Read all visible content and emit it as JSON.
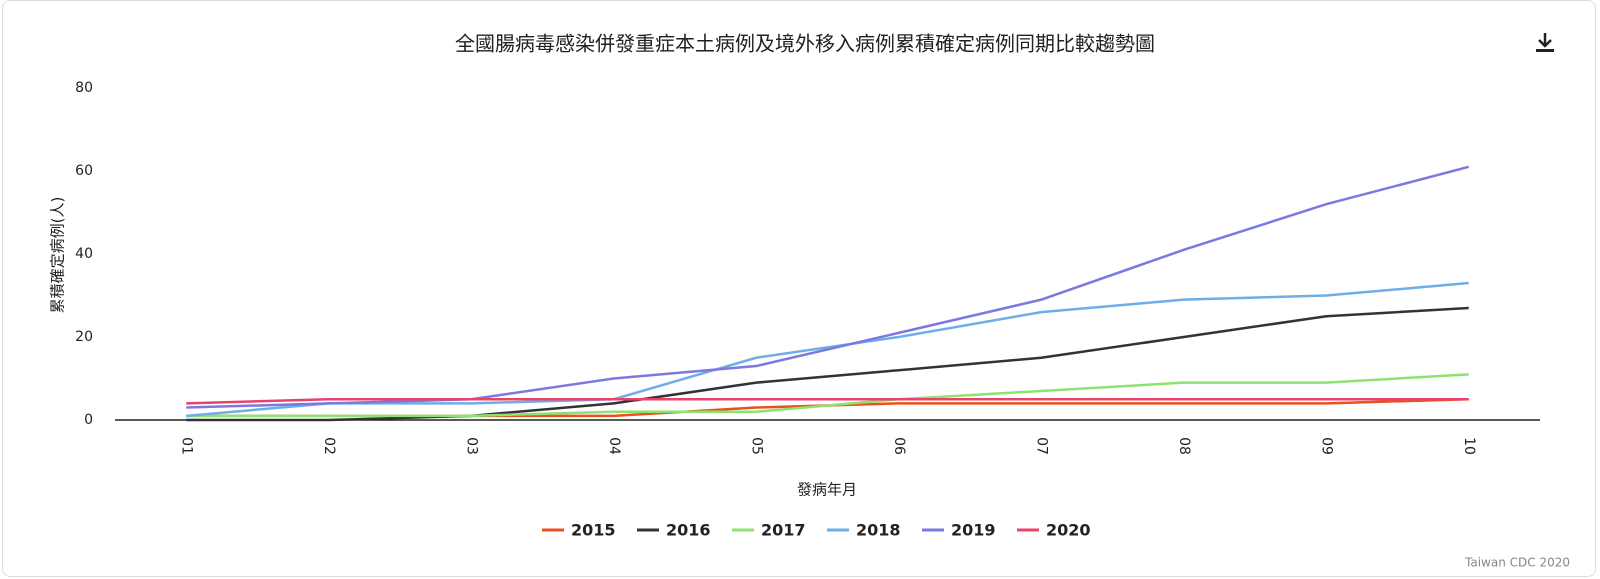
{
  "chart_data": {
    "type": "line",
    "title": "全國腸病毒感染併發重症本土病例及境外移入病例累積確定病例同期比較趨勢圖",
    "x_label": "發病年月",
    "y_label": "累積確定病例(人)",
    "credits": "Taiwan CDC 2020",
    "categories": [
      "01",
      "02",
      "03",
      "04",
      "05",
      "06",
      "07",
      "08",
      "09",
      "10"
    ],
    "ylim": [
      0,
      80
    ],
    "yticks": [
      0,
      20,
      40,
      60,
      80
    ],
    "grid": false,
    "legend": "bottom",
    "series": [
      {
        "name": "2015",
        "color": "#e8521c",
        "values": [
          1,
          1,
          1,
          1,
          3,
          4,
          4,
          4,
          4,
          5
        ]
      },
      {
        "name": "2016",
        "color": "#333333",
        "values": [
          0,
          0,
          1,
          4,
          9,
          12,
          15,
          20,
          25,
          27
        ]
      },
      {
        "name": "2017",
        "color": "#8ee26e",
        "values": [
          1,
          1,
          1,
          2,
          2,
          5,
          7,
          9,
          9,
          11
        ]
      },
      {
        "name": "2018",
        "color": "#6eaee8",
        "values": [
          1,
          4,
          4,
          5,
          15,
          20,
          26,
          29,
          30,
          33
        ]
      },
      {
        "name": "2019",
        "color": "#7b78e0",
        "values": [
          3,
          4,
          5,
          10,
          13,
          21,
          29,
          41,
          52,
          61
        ]
      },
      {
        "name": "2020",
        "color": "#e8436c",
        "values": [
          4,
          5,
          5,
          5,
          5,
          5,
          5,
          5,
          5,
          5
        ]
      }
    ]
  }
}
